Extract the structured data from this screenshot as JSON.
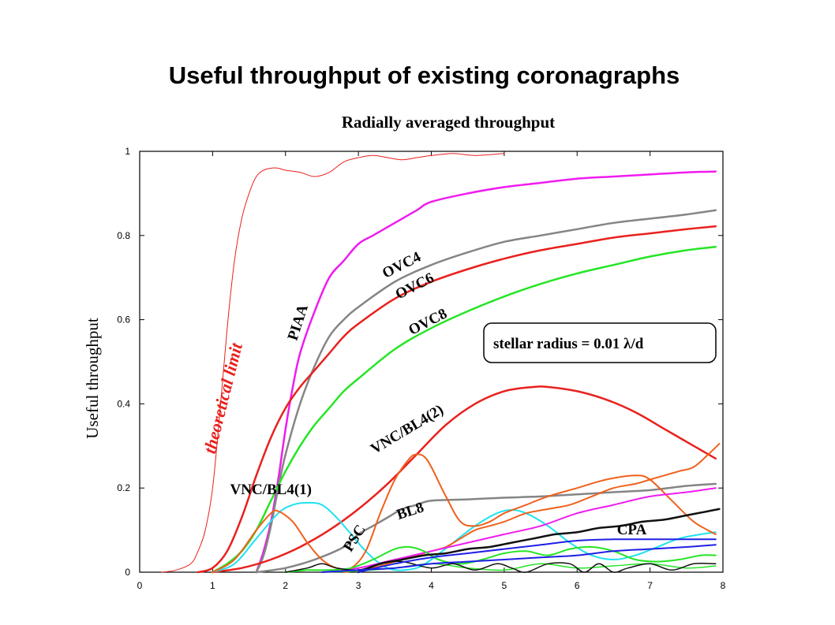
{
  "slide": {
    "title": "Useful throughput of existing coronagraphs"
  },
  "chart_data": {
    "type": "line",
    "title": "Radially averaged throughput",
    "xlabel": "",
    "ylabel": "Useful throughput",
    "xlim": [
      0,
      8
    ],
    "ylim": [
      0,
      1
    ],
    "xticks": [
      "0",
      "1",
      "2",
      "3",
      "4",
      "5",
      "6",
      "7",
      "8"
    ],
    "yticks": [
      "0",
      "0.2",
      "0.4",
      "0.6",
      "0.8",
      "1"
    ],
    "grid": false,
    "annotation": "stellar radius = 0.01  λ/d",
    "series": [
      {
        "name": "theoretical limit",
        "color": "#e8211e",
        "width": 1,
        "x": [
          0.3,
          0.5,
          0.7,
          0.8,
          0.9,
          1.0,
          1.1,
          1.2,
          1.3,
          1.4,
          1.5,
          1.6,
          1.7,
          1.8,
          1.9,
          2.0,
          2.2,
          2.4,
          2.6,
          2.8,
          3.0,
          3.2,
          3.4,
          3.6,
          3.8,
          4.0,
          4.3,
          4.6,
          5.0
        ],
        "y": [
          0,
          0.005,
          0.02,
          0.05,
          0.1,
          0.2,
          0.38,
          0.58,
          0.74,
          0.84,
          0.9,
          0.94,
          0.955,
          0.96,
          0.96,
          0.955,
          0.95,
          0.94,
          0.95,
          0.975,
          0.985,
          0.99,
          0.985,
          0.98,
          0.985,
          0.99,
          0.995,
          0.99,
          0.995
        ]
      },
      {
        "name": "PIAA",
        "color": "#ef1cef",
        "width": 2.5,
        "x": [
          1.6,
          1.7,
          1.8,
          1.9,
          2.0,
          2.1,
          2.2,
          2.4,
          2.6,
          2.8,
          3.0,
          3.2,
          3.4,
          3.6,
          3.8,
          4.0,
          4.5,
          5.0,
          5.5,
          6.0,
          6.5,
          7.0,
          7.5,
          7.9
        ],
        "y": [
          0,
          0.05,
          0.12,
          0.22,
          0.34,
          0.44,
          0.52,
          0.62,
          0.7,
          0.74,
          0.78,
          0.8,
          0.82,
          0.84,
          0.86,
          0.88,
          0.9,
          0.915,
          0.925,
          0.935,
          0.94,
          0.945,
          0.95,
          0.952
        ]
      },
      {
        "name": "OVC4",
        "color": "#858585",
        "width": 2.5,
        "x": [
          1.6,
          1.7,
          1.8,
          1.9,
          2.0,
          2.2,
          2.4,
          2.6,
          2.8,
          3.0,
          3.5,
          4.0,
          4.5,
          5.0,
          5.5,
          6.0,
          6.5,
          7.0,
          7.5,
          7.9
        ],
        "y": [
          0,
          0.04,
          0.11,
          0.2,
          0.28,
          0.4,
          0.49,
          0.56,
          0.6,
          0.63,
          0.69,
          0.73,
          0.76,
          0.785,
          0.8,
          0.815,
          0.83,
          0.84,
          0.85,
          0.86
        ]
      },
      {
        "name": "OVC6",
        "color": "#e8211e",
        "width": 2.5,
        "x": [
          0.8,
          1.0,
          1.2,
          1.4,
          1.6,
          1.8,
          2.0,
          2.2,
          2.4,
          2.6,
          2.8,
          3.0,
          3.5,
          4.0,
          4.5,
          5.0,
          5.5,
          6.0,
          6.5,
          7.0,
          7.5,
          7.9
        ],
        "y": [
          0,
          0.01,
          0.05,
          0.13,
          0.23,
          0.32,
          0.39,
          0.44,
          0.48,
          0.52,
          0.56,
          0.59,
          0.65,
          0.69,
          0.72,
          0.745,
          0.765,
          0.78,
          0.795,
          0.805,
          0.815,
          0.822
        ]
      },
      {
        "name": "OVC8",
        "color": "#25e525",
        "width": 2.5,
        "x": [
          1.0,
          1.2,
          1.4,
          1.6,
          1.8,
          2.0,
          2.2,
          2.4,
          2.6,
          2.8,
          3.0,
          3.5,
          4.0,
          4.5,
          5.0,
          5.5,
          6.0,
          6.5,
          7.0,
          7.5,
          7.9
        ],
        "y": [
          0,
          0.02,
          0.05,
          0.1,
          0.17,
          0.24,
          0.3,
          0.35,
          0.39,
          0.43,
          0.46,
          0.53,
          0.58,
          0.62,
          0.655,
          0.685,
          0.71,
          0.73,
          0.75,
          0.765,
          0.773
        ]
      },
      {
        "name": "VNC/BL4(2)",
        "color": "#e8211e",
        "width": 2.5,
        "x": [
          1.0,
          1.4,
          1.8,
          2.2,
          2.6,
          3.0,
          3.4,
          3.8,
          4.2,
          4.6,
          5.0,
          5.4,
          5.6,
          6.0,
          6.4,
          6.8,
          7.2,
          7.6,
          7.9
        ],
        "y": [
          0,
          0.01,
          0.03,
          0.06,
          0.1,
          0.15,
          0.21,
          0.28,
          0.35,
          0.4,
          0.43,
          0.44,
          0.44,
          0.43,
          0.41,
          0.38,
          0.34,
          0.3,
          0.27
        ]
      },
      {
        "name": "VNC/BL4(1)",
        "color": "#1fe2ee",
        "width": 2,
        "x": [
          1.0,
          1.3,
          1.6,
          1.9,
          2.1,
          2.3,
          2.5,
          2.7,
          2.9,
          3.1,
          3.3,
          3.5,
          3.8,
          4.0,
          4.3,
          4.6,
          4.9,
          5.1,
          5.3,
          5.6,
          5.9,
          6.2,
          6.5,
          6.8,
          7.1,
          7.4,
          7.7,
          7.9
        ],
        "y": [
          0,
          0.02,
          0.08,
          0.14,
          0.16,
          0.165,
          0.16,
          0.13,
          0.09,
          0.05,
          0.02,
          0.005,
          0.01,
          0.03,
          0.07,
          0.11,
          0.14,
          0.148,
          0.14,
          0.11,
          0.07,
          0.04,
          0.03,
          0.04,
          0.06,
          0.08,
          0.09,
          0.095
        ]
      },
      {
        "name": "BL8",
        "color": "#858585",
        "width": 2.5,
        "x": [
          1.6,
          2.0,
          2.4,
          2.8,
          3.0,
          3.2,
          3.4,
          3.6,
          3.8,
          4.0,
          4.5,
          5.0,
          5.5,
          6.0,
          6.5,
          7.0,
          7.5,
          7.9
        ],
        "y": [
          0,
          0.01,
          0.03,
          0.06,
          0.09,
          0.11,
          0.13,
          0.15,
          0.16,
          0.17,
          0.173,
          0.177,
          0.18,
          0.185,
          0.19,
          0.195,
          0.205,
          0.21
        ]
      },
      {
        "name": "PSC",
        "color": "#f0601c",
        "width": 2,
        "x": [
          1.0,
          1.3,
          1.6,
          1.8,
          1.9,
          2.1,
          2.3,
          2.5,
          2.7,
          2.9,
          3.1,
          3.3,
          3.5,
          3.7,
          3.8,
          3.9,
          4.0,
          4.2,
          4.4,
          4.6,
          4.8,
          5.0,
          5.3,
          5.6,
          6.0,
          6.4,
          6.8,
          7.0,
          7.3,
          7.6,
          7.9
        ],
        "y": [
          0,
          0.03,
          0.1,
          0.14,
          0.145,
          0.12,
          0.07,
          0.03,
          0.01,
          0.01,
          0.05,
          0.14,
          0.22,
          0.27,
          0.28,
          0.275,
          0.25,
          0.18,
          0.12,
          0.11,
          0.12,
          0.14,
          0.16,
          0.18,
          0.2,
          0.22,
          0.23,
          0.22,
          0.17,
          0.12,
          0.09
        ]
      },
      {
        "name": "",
        "color": "#f0601c",
        "width": 2,
        "x": [
          2.8,
          3.0,
          3.2,
          3.4,
          3.6,
          3.8,
          4.0,
          4.2,
          4.4,
          4.6,
          4.8,
          5.0,
          5.3,
          5.6,
          5.9,
          6.2,
          6.5,
          6.8,
          7.0,
          7.2,
          7.4,
          7.6,
          7.8,
          7.95
        ],
        "y": [
          0,
          0.005,
          0.01,
          0.02,
          0.03,
          0.04,
          0.05,
          0.06,
          0.08,
          0.1,
          0.11,
          0.12,
          0.14,
          0.15,
          0.16,
          0.18,
          0.2,
          0.21,
          0.22,
          0.23,
          0.24,
          0.25,
          0.28,
          0.305
        ]
      },
      {
        "name": "",
        "color": "#ef1cef",
        "width": 2,
        "x": [
          2.5,
          3.0,
          3.5,
          4.0,
          4.5,
          5.0,
          5.5,
          6.0,
          6.5,
          7.0,
          7.5,
          7.9
        ],
        "y": [
          0,
          0.01,
          0.03,
          0.05,
          0.07,
          0.09,
          0.11,
          0.14,
          0.16,
          0.18,
          0.19,
          0.2
        ]
      },
      {
        "name": "",
        "color": "#25e525",
        "width": 2,
        "x": [
          2.0,
          2.3,
          2.6,
          2.9,
          3.2,
          3.5,
          3.7,
          3.9,
          4.1,
          4.4,
          4.7,
          5.0,
          5.3,
          5.6,
          5.9,
          6.2,
          6.5,
          6.8,
          7.1,
          7.4,
          7.7,
          7.9
        ],
        "y": [
          0,
          0.005,
          0.005,
          0.01,
          0.03,
          0.055,
          0.06,
          0.05,
          0.03,
          0.02,
          0.03,
          0.045,
          0.05,
          0.04,
          0.055,
          0.06,
          0.05,
          0.03,
          0.025,
          0.03,
          0.04,
          0.04
        ]
      },
      {
        "name": "",
        "color": "#25e525",
        "width": 1.5,
        "x": [
          2.5,
          3.0,
          3.5,
          4.0,
          4.5,
          5.0,
          5.5,
          6.0,
          6.5,
          7.0,
          7.5,
          7.9
        ],
        "y": [
          0,
          0.003,
          0.01,
          0.02,
          0.01,
          0.005,
          0.02,
          0.01,
          0.015,
          0.02,
          0.01,
          0.015
        ]
      },
      {
        "name": "CPA",
        "color": "#111111",
        "width": 2.5,
        "x": [
          3.0,
          3.3,
          3.6,
          3.9,
          4.2,
          4.5,
          4.8,
          5.1,
          5.4,
          5.7,
          6.0,
          6.3,
          6.6,
          6.9,
          7.2,
          7.5,
          7.8,
          7.95
        ],
        "y": [
          0,
          0.02,
          0.03,
          0.04,
          0.045,
          0.055,
          0.06,
          0.07,
          0.08,
          0.09,
          0.095,
          0.105,
          0.11,
          0.12,
          0.125,
          0.135,
          0.145,
          0.15
        ]
      },
      {
        "name": "",
        "color": "#111111",
        "width": 1.5,
        "x": [
          2.0,
          2.3,
          2.5,
          2.7,
          3.0,
          3.3,
          3.6,
          4.0,
          4.3,
          4.6,
          4.9,
          5.1,
          5.3,
          5.6,
          5.9,
          6.1,
          6.3,
          6.5,
          6.7,
          7.0,
          7.3,
          7.6,
          7.9
        ],
        "y": [
          0,
          0.01,
          0.02,
          0.01,
          0.005,
          0.02,
          0.025,
          0.01,
          0.02,
          0.005,
          0.02,
          0.01,
          0.0,
          0.02,
          0.02,
          0.0,
          0.02,
          0.0,
          0.01,
          0.02,
          0.005,
          0.02,
          0.02
        ]
      },
      {
        "name": "",
        "color": "#1f1fe6",
        "width": 2,
        "x": [
          2.5,
          3.0,
          3.5,
          4.0,
          4.5,
          5.0,
          5.5,
          6.0,
          6.5,
          7.0,
          7.5,
          7.9
        ],
        "y": [
          0,
          0.005,
          0.01,
          0.02,
          0.025,
          0.03,
          0.035,
          0.04,
          0.05,
          0.055,
          0.06,
          0.065
        ]
      },
      {
        "name": "",
        "color": "#1f1fe6",
        "width": 2,
        "x": [
          3.0,
          3.5,
          4.0,
          4.5,
          5.0,
          5.5,
          6.0,
          6.5,
          7.0,
          7.5,
          7.9
        ],
        "y": [
          0,
          0.02,
          0.035,
          0.045,
          0.055,
          0.065,
          0.075,
          0.078,
          0.078,
          0.078,
          0.078
        ]
      }
    ],
    "curve_labels": [
      {
        "text": "theoretical limit",
        "class": "rlabel",
        "x": 1.22,
        "y": 0.41,
        "rot": -76
      },
      {
        "text": "PIAA",
        "class": "clabel",
        "x": 2.23,
        "y": 0.59,
        "rot": -72
      },
      {
        "text": "OVC4",
        "class": "clabel",
        "x": 3.62,
        "y": 0.72,
        "rot": -27
      },
      {
        "text": "OVC6",
        "class": "clabel",
        "x": 3.8,
        "y": 0.67,
        "rot": -27
      },
      {
        "text": "OVC8",
        "class": "clabel",
        "x": 3.98,
        "y": 0.585,
        "rot": -27
      },
      {
        "text": "VNC/BL4(2)",
        "class": "clabel",
        "x": 3.7,
        "y": 0.33,
        "rot": -31
      },
      {
        "text": "VNC/BL4(1)",
        "class": "clabel",
        "x": 1.8,
        "y": 0.185,
        "rot": 0
      },
      {
        "text": "PSC",
        "class": "clabel",
        "x": 3.0,
        "y": 0.075,
        "rot": -58
      },
      {
        "text": "BL8",
        "class": "clabel",
        "x": 3.73,
        "y": 0.135,
        "rot": -18
      },
      {
        "text": "CPA",
        "class": "clabel",
        "x": 6.75,
        "y": 0.09,
        "rot": 0
      }
    ]
  }
}
